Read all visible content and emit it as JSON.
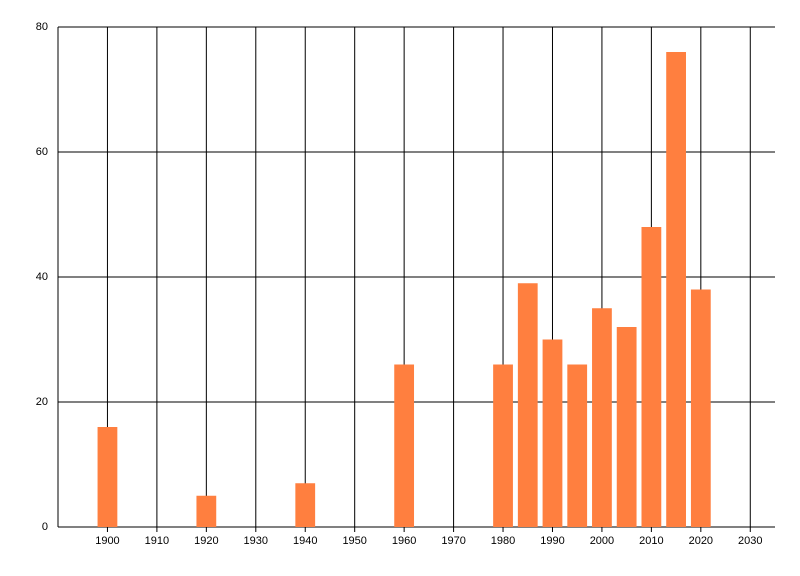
{
  "chart_data": {
    "type": "bar",
    "x": [
      1900,
      1920,
      1940,
      1960,
      1980,
      1985,
      1990,
      1995,
      2000,
      2005,
      2010,
      2015,
      2020
    ],
    "values": [
      16,
      5,
      7,
      26,
      26,
      39,
      30,
      26,
      35,
      32,
      48,
      76,
      38
    ],
    "color": "#ff7f3f",
    "xlim": [
      1890,
      2035
    ],
    "xticks": [
      1900,
      1910,
      1920,
      1930,
      1940,
      1950,
      1960,
      1970,
      1980,
      1990,
      2000,
      2010,
      2020,
      2030
    ],
    "ylim": [
      0,
      80
    ],
    "yticks": [
      0,
      20,
      40,
      60,
      80
    ],
    "grid": true
  }
}
